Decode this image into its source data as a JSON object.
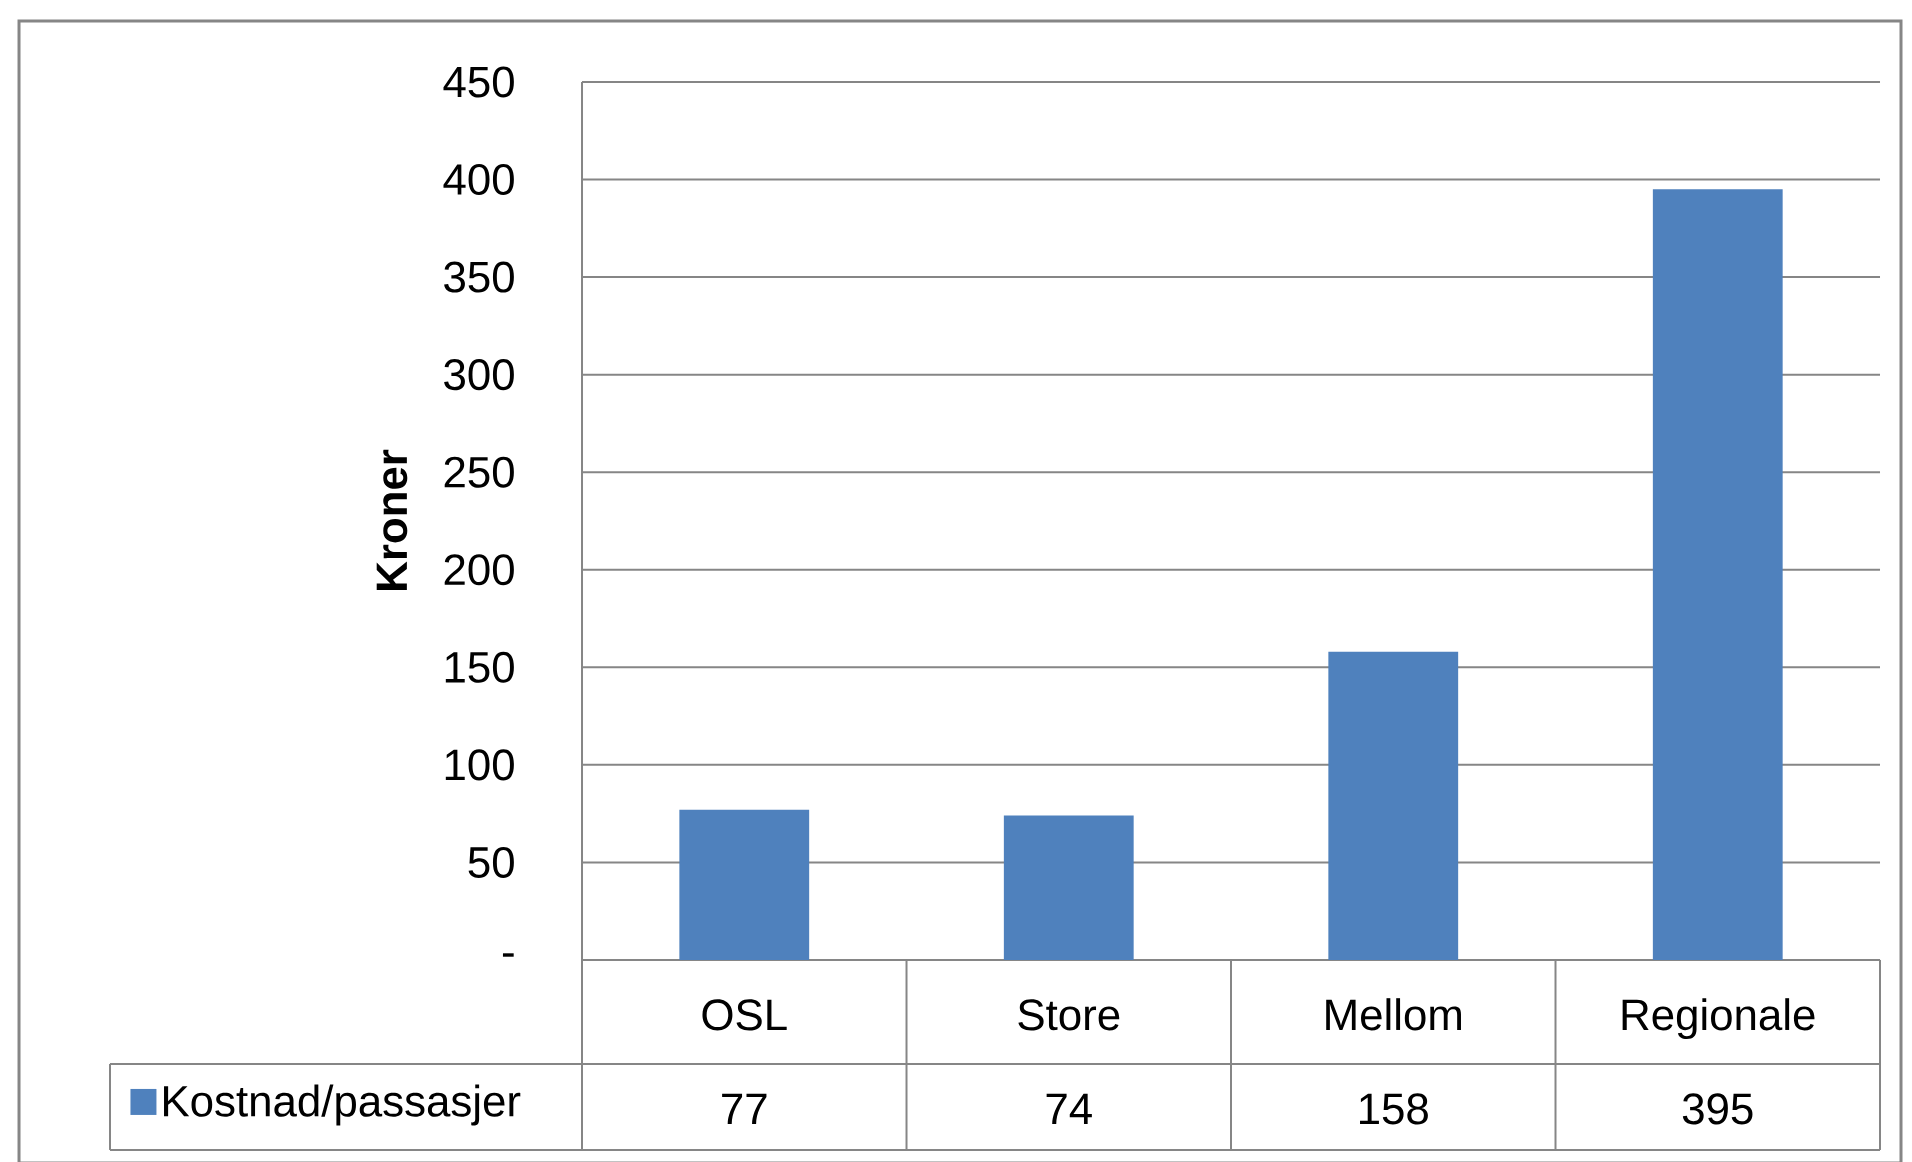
{
  "chart_data": {
    "type": "bar",
    "ylabel": "Kroner",
    "categories": [
      "OSL",
      "Store",
      "Mellom",
      "Regionale"
    ],
    "series": [
      {
        "name": "Kostnad/passasjer",
        "color": "#4f81bd",
        "values": [
          77,
          74,
          158,
          395
        ]
      }
    ],
    "ylim": [
      0,
      450
    ],
    "yticks": [
      {
        "value": 0,
        "label": "-"
      },
      50,
      100,
      150,
      200,
      250,
      300,
      350,
      400,
      450
    ],
    "grid": "y",
    "legend": "bottom left",
    "data_labels": true
  }
}
